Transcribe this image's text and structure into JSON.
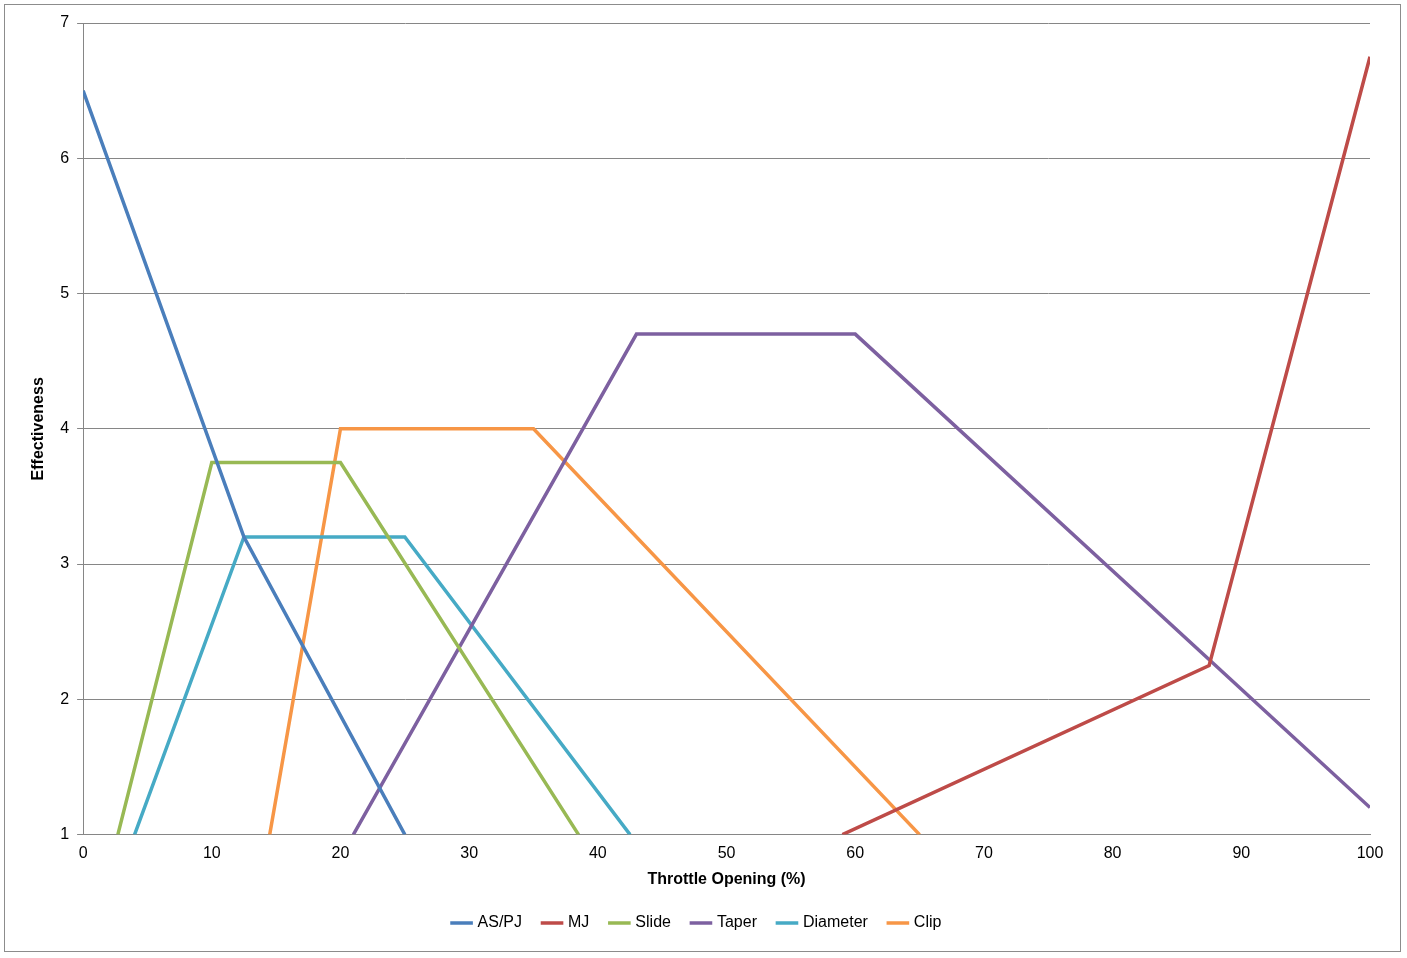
{
  "chart_data": {
    "type": "line",
    "x_label": "Throttle Opening (%)",
    "y_label": "Effectiveness",
    "xlim": [
      0,
      100
    ],
    "xticks": [
      0,
      10,
      20,
      30,
      40,
      50,
      60,
      70,
      80,
      90,
      100
    ],
    "ylim": [
      1,
      7
    ],
    "yticks": [
      1,
      2,
      3,
      4,
      5,
      6,
      7
    ],
    "grid": true,
    "legend": "bottom",
    "series": [
      {
        "name": "AS/PJ",
        "color": "#4a7ebb",
        "x": [
          0,
          12.5,
          25
        ],
        "values": [
          6.5,
          3.2,
          1
        ]
      },
      {
        "name": "MJ",
        "color": "#be4b48",
        "x": [
          59,
          87.5,
          100
        ],
        "values": [
          1,
          2.25,
          6.75
        ]
      },
      {
        "name": "Slide",
        "color": "#98b954",
        "x": [
          2.7,
          10,
          20,
          38.5
        ],
        "values": [
          1,
          3.75,
          3.75,
          1
        ]
      },
      {
        "name": "Taper",
        "color": "#7d60a0",
        "x": [
          21,
          43,
          60,
          100
        ],
        "values": [
          1,
          4.7,
          4.7,
          1.2
        ]
      },
      {
        "name": "Diameter",
        "color": "#46aac5",
        "x": [
          4,
          12.5,
          25,
          42.5
        ],
        "values": [
          1,
          3.2,
          3.2,
          1
        ]
      },
      {
        "name": "Clip",
        "color": "#f79646",
        "x": [
          14.5,
          20,
          35,
          65
        ],
        "values": [
          1,
          4,
          4,
          1
        ]
      }
    ]
  }
}
